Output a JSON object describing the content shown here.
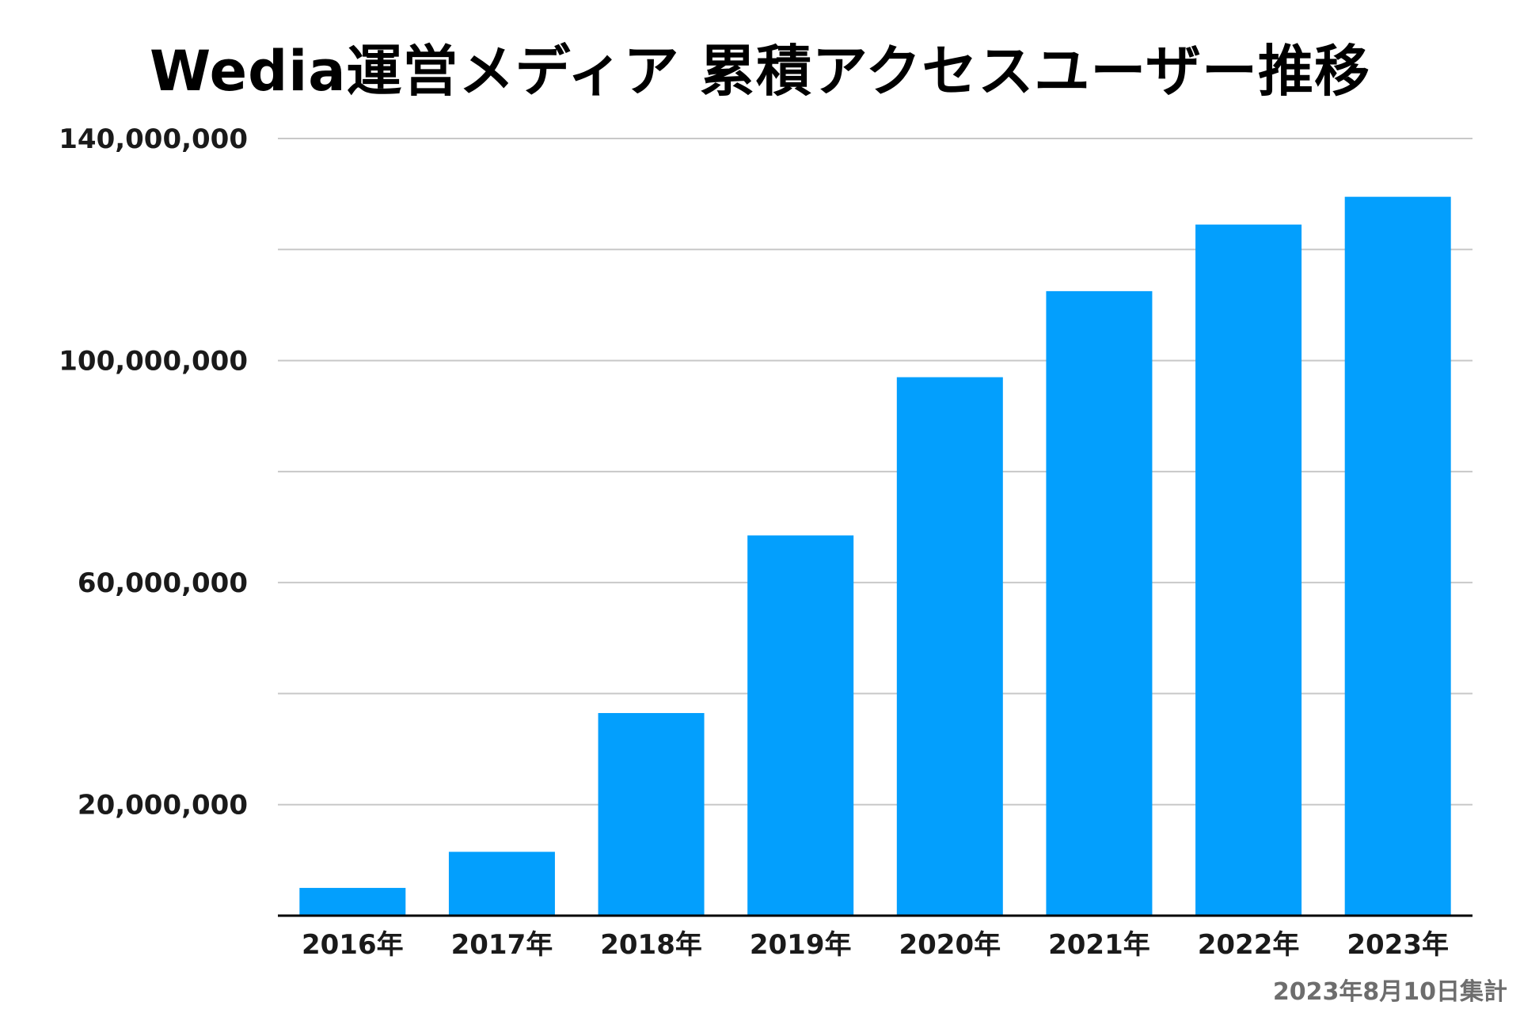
{
  "chart_data": {
    "type": "bar",
    "title": "Wedia運営メディア 累積アクセスユーザー推移",
    "xlabel": "",
    "ylabel": "",
    "categories": [
      "2016年",
      "2017年",
      "2018年",
      "2019年",
      "2020年",
      "2021年",
      "2022年",
      "2023年"
    ],
    "values": [
      5000000,
      11500000,
      36500000,
      68500000,
      97000000,
      112500000,
      124500000,
      129500000
    ],
    "ylim": [
      0,
      140000000
    ],
    "y_ticks_labeled": [
      "20,000,000",
      "60,000,000",
      "100,000,000",
      "140,000,000"
    ],
    "y_tick_values": [
      20000000,
      60000000,
      100000000,
      140000000
    ],
    "gridline_values": [
      20000000,
      40000000,
      60000000,
      80000000,
      100000000,
      120000000,
      140000000
    ],
    "grid": true,
    "legend": "none",
    "bar_color": "#039ffd",
    "grid_color": "#c8c8c8",
    "axis_color": "#000000",
    "footnote": "2023年8月10日集計"
  }
}
